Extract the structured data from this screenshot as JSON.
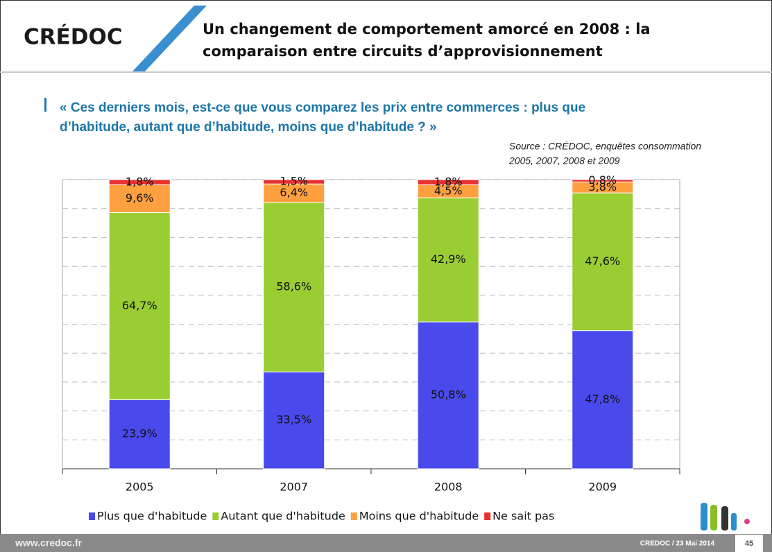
{
  "header": {
    "logo": "CRÉDOC",
    "title_lines": [
      "Un changement de comportement amorcé en 2008  : la",
      "comparaison entre circuits d’approvisionnement"
    ]
  },
  "question_lines": [
    "« Ces derniers mois, est-ce que vous comparez les prix entre commerces : plus que",
    "d’habitude, autant que d’habitude, moins que d’habitude ? »"
  ],
  "source_lines": [
    "Source : CRÉDOC, enquêtes consommation",
    "2005, 2007, 2008 et 2009"
  ],
  "footer": {
    "url": "www.credoc.fr",
    "date": "CREDOC / 23 Mai 2014",
    "page": "45"
  },
  "chart_data": {
    "type": "stacked-bar",
    "categories": [
      "2005",
      "2007",
      "2008",
      "2009"
    ],
    "series": [
      {
        "name": "Plus que d'habitude",
        "color": "#4a4aec",
        "values": [
          23.9,
          33.5,
          50.8,
          47.8
        ],
        "value_labels": [
          "23,9%",
          "33,5%",
          "50,8%",
          "47,8%"
        ]
      },
      {
        "name": "Autant que d'habitude",
        "color": "#9acd32",
        "values": [
          64.7,
          58.6,
          42.9,
          47.6
        ],
        "value_labels": [
          "64,7%",
          "58,6%",
          "42,9%",
          "47,6%"
        ]
      },
      {
        "name": "Moins que d'habitude",
        "color": "#ffa040",
        "values": [
          9.6,
          6.4,
          4.5,
          3.8
        ],
        "value_labels": [
          "9,6%",
          "6,4%",
          "4,5%",
          "3,8%"
        ]
      },
      {
        "name": "Ne sait pas",
        "color": "#e83030",
        "values": [
          1.8,
          1.5,
          1.8,
          0.8
        ],
        "value_labels": [
          "1,8%",
          "1,5%",
          "1,8%",
          "0,8%"
        ]
      }
    ],
    "ylim": [
      0,
      100
    ],
    "yticks": [
      0,
      10,
      20,
      30,
      40,
      50,
      60,
      70,
      80,
      90,
      100
    ],
    "grid": true,
    "legend": "bottom"
  }
}
